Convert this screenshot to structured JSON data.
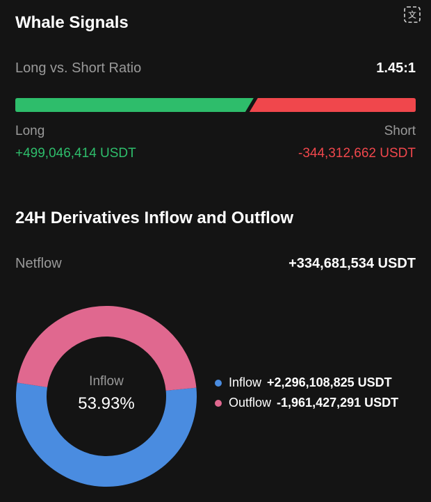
{
  "whale": {
    "title": "Whale Signals",
    "ratio_label": "Long vs. Short Ratio",
    "ratio_value": "1.45:1",
    "long_label": "Long",
    "short_label": "Short",
    "long_value": "+499,046,414 USDT",
    "short_value": "-344,312,662 USDT",
    "long_fraction": 0.59
  },
  "flow": {
    "title": "24H Derivatives Inflow and Outflow",
    "netflow_label": "Netflow",
    "netflow_value": "+334,681,534 USDT"
  },
  "chart_data": {
    "type": "pie",
    "donut": true,
    "center_label": "Inflow",
    "center_value": "53.93%",
    "series": [
      {
        "name": "Inflow",
        "value": 2296108825,
        "display": "+2,296,108,825 USDT",
        "percent": 53.93,
        "color": "#4a8ce0"
      },
      {
        "name": "Outflow",
        "value": 1961427291,
        "display": "-1,961,427,291 USDT",
        "percent": 46.07,
        "color": "#e0688f"
      }
    ]
  },
  "colors": {
    "long": "#2ebd6b",
    "short": "#f0474c",
    "background": "#141414"
  },
  "icons": {
    "translate": "translate-icon"
  }
}
